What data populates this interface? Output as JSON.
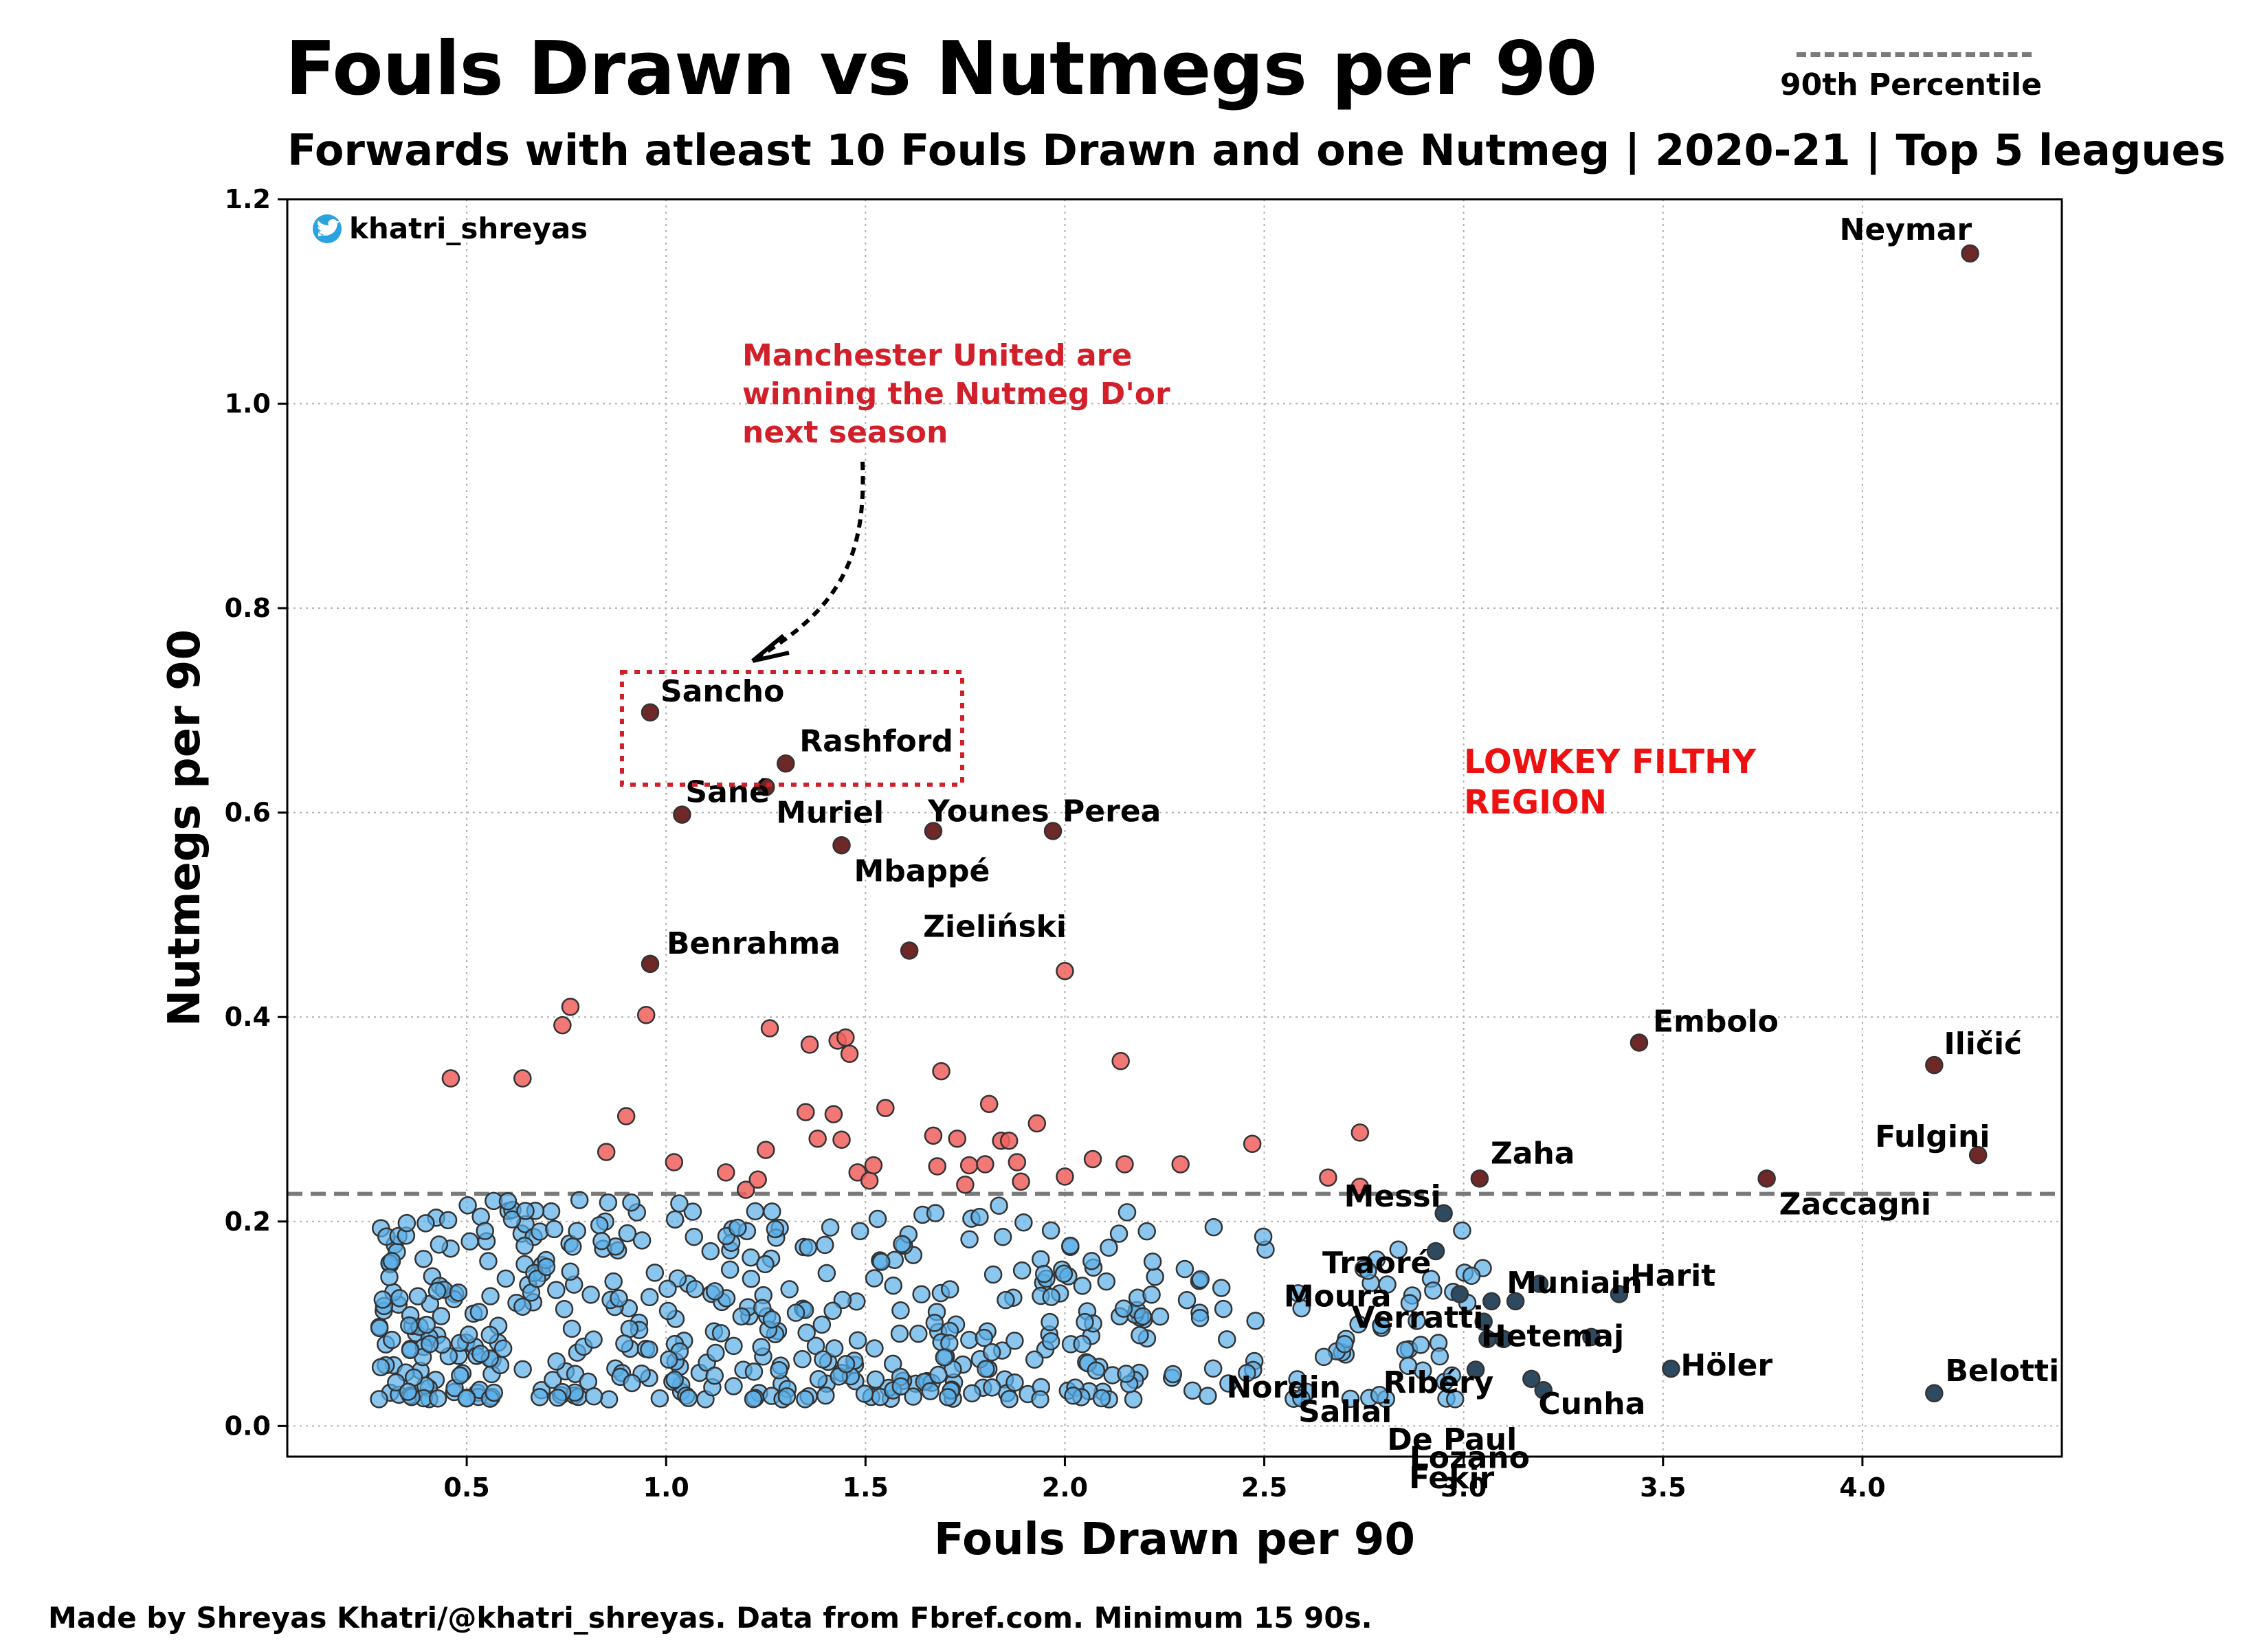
{
  "header": {
    "title": "Fouls Drawn vs Nutmegs per 90",
    "subtitle": "Forwards with atleast 10 Fouls Drawn and one Nutmeg | 2020-21 | Top 5 leagues"
  },
  "legend": {
    "label": "90th Percentile",
    "line_color": "#7a7a7a"
  },
  "footer": {
    "text": "Made by Shreyas Khatri/@khatri_shreyas. Data from Fbref.com. Minimum 15 90s."
  },
  "credit": {
    "handle": "khatri_shreyas",
    "icon": "twitter-bird-icon",
    "icon_color": "#2aa3e0"
  },
  "annotations": {
    "manutd": [
      "Manchester United are",
      "winning the Nutmeg D'or",
      "next season"
    ],
    "region": [
      "LOWKEY FILTHY",
      "REGION"
    ]
  },
  "chart_data": {
    "type": "scatter",
    "xlabel": "Fouls Drawn per 90",
    "ylabel": "Nutmegs per 90",
    "xlim": [
      0.05,
      4.5
    ],
    "ylim": [
      -0.03,
      1.2
    ],
    "xticks": [
      0.5,
      1.0,
      1.5,
      2.0,
      2.5,
      3.0,
      3.5,
      4.0
    ],
    "xtick_labels": [
      "0.5",
      "1.0",
      "1.5",
      "2.0",
      "2.5",
      "3.0",
      "3.5",
      "4.0"
    ],
    "yticks": [
      0.0,
      0.2,
      0.4,
      0.6,
      0.8,
      1.0,
      1.2
    ],
    "ytick_labels": [
      "0.0",
      "0.2",
      "0.4",
      "0.6",
      "0.8",
      "1.0",
      "1.2"
    ],
    "grid": true,
    "percentile_90_nutmegs": 0.227,
    "colors": {
      "above": "#f0605e",
      "below": "#5aaee8",
      "labeled_above": "#6e2828",
      "labeled_below": "#2e4a60",
      "edge": "#333333"
    },
    "labeled_points": [
      {
        "name": "Neymar",
        "x": 4.27,
        "y": 1.147
      },
      {
        "name": "Sancho",
        "x": 0.96,
        "y": 0.698
      },
      {
        "name": "Rashford",
        "x": 1.3,
        "y": 0.648
      },
      {
        "name": "Sané",
        "x": 1.04,
        "y": 0.598
      },
      {
        "name": "Muriel",
        "x": 1.25,
        "y": 0.625
      },
      {
        "name": "Younes",
        "x": 1.67,
        "y": 0.582
      },
      {
        "name": "Perea",
        "x": 1.97,
        "y": 0.582
      },
      {
        "name": "Mbappé",
        "x": 1.44,
        "y": 0.568
      },
      {
        "name": "Zieliński",
        "x": 1.61,
        "y": 0.465
      },
      {
        "name": "Benrahma",
        "x": 0.96,
        "y": 0.452
      },
      {
        "name": "Embolo",
        "x": 3.44,
        "y": 0.375
      },
      {
        "name": "Iličić",
        "x": 4.18,
        "y": 0.353
      },
      {
        "name": "Fulgini",
        "x": 4.29,
        "y": 0.265
      },
      {
        "name": "Zaha",
        "x": 3.04,
        "y": 0.242
      },
      {
        "name": "Zaccagni",
        "x": 3.76,
        "y": 0.242
      },
      {
        "name": "Messi",
        "x": 2.95,
        "y": 0.208
      },
      {
        "name": "Traoré",
        "x": 2.93,
        "y": 0.171
      },
      {
        "name": "Muniain",
        "x": 3.07,
        "y": 0.122
      },
      {
        "name": "Harit",
        "x": 3.39,
        "y": 0.129
      },
      {
        "name": "Moura",
        "x": 2.99,
        "y": 0.129
      },
      {
        "name": "Verratti",
        "x": 3.05,
        "y": 0.102
      },
      {
        "name": "Hetemaj",
        "x": 3.19,
        "y": 0.139
      },
      {
        "name": "Ribéry",
        "x": 3.1,
        "y": 0.085
      },
      {
        "name": "Nordin",
        "x": 3.06,
        "y": 0.085
      },
      {
        "name": "Cunha",
        "x": 3.32,
        "y": 0.087
      },
      {
        "name": "Höler",
        "x": 3.52,
        "y": 0.056
      },
      {
        "name": "Sallai",
        "x": 3.03,
        "y": 0.055
      },
      {
        "name": "De Paul",
        "x": 3.17,
        "y": 0.046
      },
      {
        "name": "Lozano",
        "x": 3.2,
        "y": 0.035
      },
      {
        "name": "Fekir",
        "x": 3.13,
        "y": 0.122
      },
      {
        "name": "Belotti",
        "x": 4.18,
        "y": 0.032
      }
    ],
    "points_above": [
      [
        0.46,
        0.34
      ],
      [
        0.64,
        0.34
      ],
      [
        0.74,
        0.392
      ],
      [
        0.76,
        0.41
      ],
      [
        0.85,
        0.268
      ],
      [
        0.9,
        0.303
      ],
      [
        0.95,
        0.402
      ],
      [
        1.02,
        0.258
      ],
      [
        1.15,
        0.248
      ],
      [
        1.2,
        0.231
      ],
      [
        1.23,
        0.241
      ],
      [
        1.25,
        0.27
      ],
      [
        1.26,
        0.389
      ],
      [
        1.35,
        0.307
      ],
      [
        1.36,
        0.373
      ],
      [
        1.38,
        0.281
      ],
      [
        1.42,
        0.305
      ],
      [
        1.43,
        0.377
      ],
      [
        1.44,
        0.28
      ],
      [
        1.45,
        0.38
      ],
      [
        1.46,
        0.364
      ],
      [
        1.48,
        0.248
      ],
      [
        1.51,
        0.24
      ],
      [
        1.52,
        0.255
      ],
      [
        1.55,
        0.311
      ],
      [
        1.67,
        0.284
      ],
      [
        1.68,
        0.254
      ],
      [
        1.69,
        0.347
      ],
      [
        1.73,
        0.281
      ],
      [
        1.75,
        0.236
      ],
      [
        1.76,
        0.255
      ],
      [
        1.8,
        0.256
      ],
      [
        1.81,
        0.315
      ],
      [
        1.84,
        0.279
      ],
      [
        1.86,
        0.279
      ],
      [
        1.88,
        0.258
      ],
      [
        1.89,
        0.239
      ],
      [
        1.93,
        0.296
      ],
      [
        2.0,
        0.445
      ],
      [
        2.0,
        0.244
      ],
      [
        2.07,
        0.261
      ],
      [
        2.14,
        0.357
      ],
      [
        2.15,
        0.256
      ],
      [
        2.29,
        0.256
      ],
      [
        2.47,
        0.276
      ],
      [
        2.66,
        0.243
      ],
      [
        2.74,
        0.287
      ],
      [
        2.74,
        0.234
      ]
    ]
  }
}
